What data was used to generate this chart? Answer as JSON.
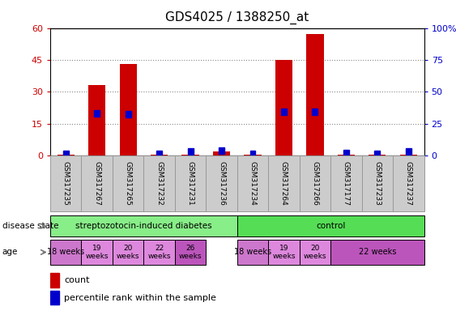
{
  "title": "GDS4025 / 1388250_at",
  "samples": [
    "GSM317235",
    "GSM317267",
    "GSM317265",
    "GSM317232",
    "GSM317231",
    "GSM317236",
    "GSM317234",
    "GSM317264",
    "GSM317266",
    "GSM317177",
    "GSM317233",
    "GSM317237"
  ],
  "count_values": [
    0.3,
    33,
    43,
    0.3,
    0.3,
    2,
    0.3,
    45,
    57,
    0.3,
    0.3,
    0.3
  ],
  "percentile_values_left_scale": [
    0.6,
    19.8,
    19.5,
    0.6,
    1.8,
    2.4,
    0.6,
    20.7,
    20.7,
    1.2,
    0.6,
    1.8
  ],
  "ylim_left": [
    0,
    60
  ],
  "ylim_right": [
    0,
    100
  ],
  "yticks_left": [
    0,
    15,
    30,
    45,
    60
  ],
  "yticks_right": [
    0,
    25,
    50,
    75,
    100
  ],
  "ytick_labels_right": [
    "0",
    "25",
    "50",
    "75",
    "100%"
  ],
  "bar_color": "#cc0000",
  "dot_color": "#0000cc",
  "disease_state_groups": [
    {
      "label": "streptozotocin-induced diabetes",
      "start": 0,
      "end": 6,
      "color": "#88ee88"
    },
    {
      "label": "control",
      "start": 6,
      "end": 12,
      "color": "#55dd55"
    }
  ],
  "age_groups": [
    {
      "label": "18 weeks",
      "start": 0,
      "end": 1,
      "color": "#cc77cc",
      "fontsize": 7
    },
    {
      "label": "19\nweeks",
      "start": 1,
      "end": 2,
      "color": "#dd88dd",
      "fontsize": 6.5
    },
    {
      "label": "20\nweeks",
      "start": 2,
      "end": 3,
      "color": "#dd88dd",
      "fontsize": 6.5
    },
    {
      "label": "22\nweeks",
      "start": 3,
      "end": 4,
      "color": "#dd88dd",
      "fontsize": 6.5
    },
    {
      "label": "26\nweeks",
      "start": 4,
      "end": 5,
      "color": "#bb55bb",
      "fontsize": 6.5
    },
    {
      "label": "18 weeks",
      "start": 6,
      "end": 7,
      "color": "#cc77cc",
      "fontsize": 7
    },
    {
      "label": "19\nweeks",
      "start": 7,
      "end": 8,
      "color": "#dd88dd",
      "fontsize": 6.5
    },
    {
      "label": "20\nweeks",
      "start": 8,
      "end": 9,
      "color": "#dd88dd",
      "fontsize": 6.5
    },
    {
      "label": "22 weeks",
      "start": 9,
      "end": 12,
      "color": "#bb55bb",
      "fontsize": 7
    }
  ],
  "tick_label_color_left": "#cc0000",
  "tick_label_color_right": "#0000cc",
  "bg_color": "#ffffff",
  "grid_color": "#888888",
  "label_area_color": "#cccccc",
  "label_area_border": "#999999"
}
